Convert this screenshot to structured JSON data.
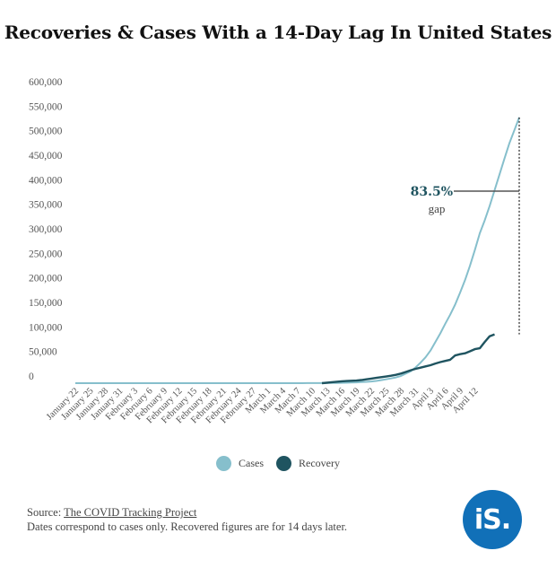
{
  "title": "Recoveries & Cases With a 14-Day Lag In United States",
  "legend": [
    {
      "label": "Cases",
      "color": "#86bfcc"
    },
    {
      "label": "Recovery",
      "color": "#1f5460"
    }
  ],
  "annotation": {
    "value": "83.5%",
    "label": "gap",
    "color": "#1f5460"
  },
  "footer": {
    "source_prefix": "Source:",
    "source_link": "The COVID Tracking Project",
    "note": "Dates correspond to cases only. Recovered figures are for 14 days later."
  },
  "logo": {
    "text": "iS."
  },
  "chart_data": {
    "type": "line",
    "title": "Recoveries & Cases With a 14-Day Lag In United States",
    "xlabel": "",
    "ylabel": "",
    "ylim": [
      0,
      600000
    ],
    "yticks": [
      0,
      50000,
      100000,
      150000,
      200000,
      250000,
      300000,
      350000,
      400000,
      450000,
      500000,
      550000,
      600000
    ],
    "ytick_labels": [
      "0",
      "50,000",
      "100,000",
      "150,000",
      "200,000",
      "250,000",
      "300,000",
      "350,000",
      "400,000",
      "450,000",
      "500,000",
      "550,000",
      "600,000"
    ],
    "x_start_label": "January 22",
    "x_tick_labels": [
      "January 22",
      "January 25",
      "January 28",
      "January 31",
      "February 3",
      "February 6",
      "February 9",
      "February 12",
      "February 15",
      "February 18",
      "February 21",
      "February 24",
      "February 27",
      "March 1",
      "March 4",
      "March 7",
      "March 10",
      "March 13",
      "March 16",
      "March 19",
      "March 22",
      "March 25",
      "March 28",
      "March 31",
      "April 3",
      "April 6",
      "April 9",
      "April 12"
    ],
    "grid": false,
    "legend_position": "bottom",
    "series": [
      {
        "name": "Cases",
        "color": "#86bfcc",
        "x_start": "January 22",
        "values": [
          1,
          1,
          2,
          2,
          5,
          5,
          5,
          6,
          6,
          8,
          8,
          11,
          11,
          11,
          12,
          12,
          12,
          12,
          12,
          12,
          13,
          13,
          14,
          14,
          14,
          14,
          14,
          14,
          14,
          14,
          14,
          14,
          14,
          14,
          14,
          14,
          14,
          14,
          15,
          15,
          16,
          16,
          16,
          20,
          30,
          60,
          90,
          110,
          150,
          200,
          250,
          320,
          430,
          540,
          700,
          950,
          1300,
          1700,
          2200,
          2900,
          3500,
          4600,
          6400,
          8000,
          10000,
          12000,
          15000,
          20000,
          25000,
          33000,
          43000,
          54000,
          68000,
          86000,
          104000,
          124000,
          143000,
          164000,
          189000,
          215000,
          245000,
          278000,
          313000,
          340000,
          370000,
          403000,
          436000,
          469000,
          501000,
          528000,
          555000
        ]
      },
      {
        "name": "Recovery",
        "color": "#1f5460",
        "x_start": "March 12",
        "values": [
          0,
          1000,
          2000,
          3000,
          4000,
          4500,
          5000,
          5500,
          6500,
          8000,
          9500,
          11000,
          12500,
          14000,
          15500,
          17500,
          20000,
          23500,
          27000,
          30000,
          32500,
          35000,
          37500,
          41000,
          44000,
          46500,
          49000,
          58000,
          60500,
          62500,
          66500,
          71000,
          73000,
          86000,
          98000,
          102000
        ]
      }
    ]
  }
}
